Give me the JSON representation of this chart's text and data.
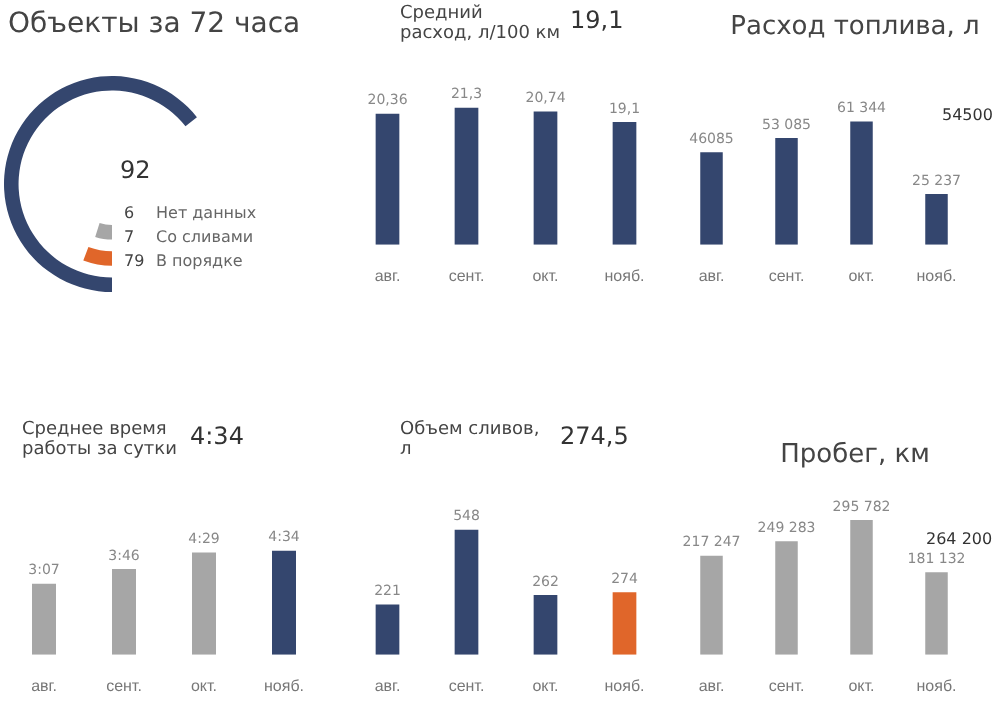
{
  "chart_data": [
    {
      "type": "other",
      "title": "Объекты за 72 часа",
      "annotations": [
        "92"
      ],
      "categories": [
        "Нет данных",
        "Со сливами",
        "В порядке"
      ],
      "values": [
        6,
        7,
        79
      ],
      "data_labels": true,
      "colors": [
        "#a6a6a6",
        "#e0662a",
        "#34466e"
      ]
    },
    {
      "type": "bar",
      "title": "Средний расход, л/100 км",
      "annotations": [
        "19,1"
      ],
      "categories": [
        "авг.",
        "сент.",
        "окт.",
        "нояб."
      ],
      "values": [
        20.36,
        21.3,
        20.74,
        19.1
      ],
      "value_labels": [
        "20,36",
        "21,3",
        "20,74",
        "19,1"
      ],
      "color": "#34466e"
    },
    {
      "type": "bar",
      "title": "Расход топлива, л",
      "annotations": [
        "54500"
      ],
      "categories": [
        "авг.",
        "сент.",
        "окт.",
        "нояб."
      ],
      "values": [
        46085,
        53085,
        61344,
        25237
      ],
      "value_labels": [
        "46085",
        "53 085",
        "61 344",
        "25 237"
      ],
      "color": "#34466e"
    },
    {
      "type": "bar",
      "title": "Среднее время работы за сутки",
      "annotations": [
        "4:34"
      ],
      "categories": [
        "авг.",
        "сент.",
        "окт.",
        "нояб."
      ],
      "values": [
        3.117,
        3.767,
        4.483,
        4.567
      ],
      "value_labels": [
        "3:07",
        "3:46",
        "4:29",
        "4:34"
      ],
      "colors": [
        "#a6a6a6",
        "#a6a6a6",
        "#a6a6a6",
        "#34466e"
      ]
    },
    {
      "type": "bar",
      "title": "Объем сливов, л",
      "annotations": [
        "274,5"
      ],
      "categories": [
        "авг.",
        "сент.",
        "окт.",
        "нояб."
      ],
      "values": [
        221,
        548,
        262,
        274
      ],
      "value_labels": [
        "221",
        "548",
        "262",
        "274"
      ],
      "colors": [
        "#34466e",
        "#34466e",
        "#34466e",
        "#e0662a"
      ]
    },
    {
      "type": "bar",
      "title": "Пробег, км",
      "annotations": [
        "264 200"
      ],
      "categories": [
        "авг.",
        "сент.",
        "окт.",
        "нояб."
      ],
      "values": [
        217247,
        249283,
        295782,
        181132
      ],
      "value_labels": [
        "217 247",
        "249 283",
        "295 782",
        "181 132"
      ],
      "color": "#a6a6a6"
    }
  ]
}
